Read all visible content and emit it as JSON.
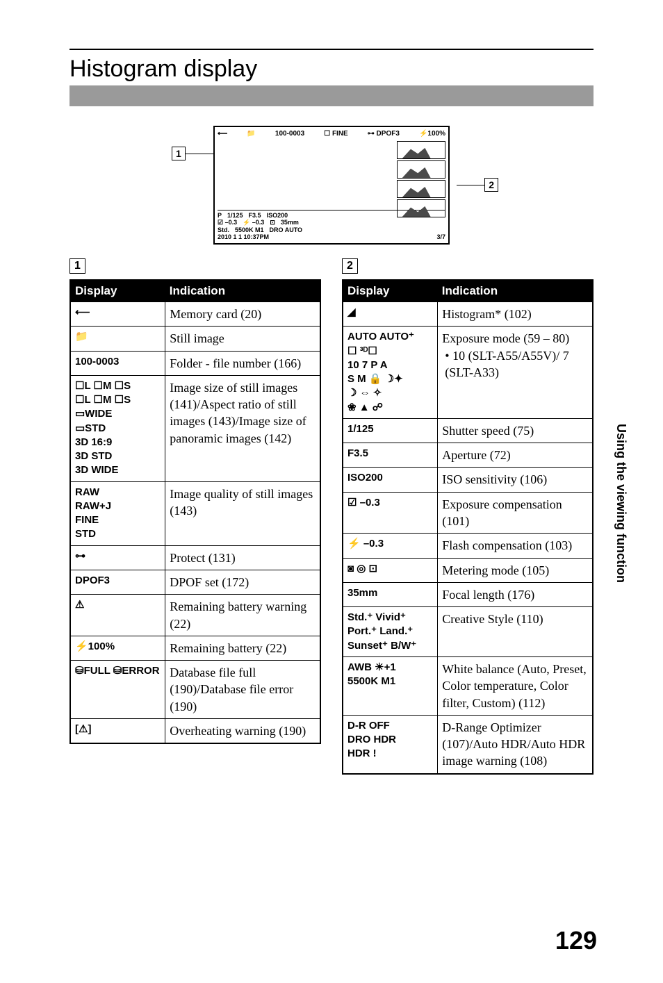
{
  "title": "Histogram display",
  "side_text": "Using the viewing function",
  "page_number": "129",
  "callouts": {
    "one": "1",
    "two": "2"
  },
  "lcd": {
    "top": [
      "⟵",
      "📁",
      "100-0003",
      "☐ FINE",
      "⊶ DPOF3",
      "⚡100%"
    ],
    "bottom": [
      [
        "P",
        "1/125",
        "F3.5",
        "ISO200"
      ],
      [
        "☑ –0.3",
        "⚡ –0.3",
        "⊡",
        "35mm"
      ],
      [
        "Std.",
        "5500K M1",
        "DRO AUTO"
      ],
      [
        "2010 1 1  10:37PM",
        "",
        "",
        "3/7"
      ]
    ]
  },
  "table1": {
    "head_display": "Display",
    "head_indication": "Indication",
    "rows": [
      {
        "disp": "⟵",
        "ind": "Memory card (20)"
      },
      {
        "disp": "📁",
        "ind": "Still image"
      },
      {
        "disp": "100-0003",
        "ind": "Folder - file number (166)"
      },
      {
        "disp": "☐L ☐M ☐S\n☐L ☐M ☐S\n▭WIDE\n▭STD\n3D 16:9\n3D STD\n3D WIDE",
        "ind": "Image size of still images (141)/Aspect ratio of still images (143)/Image size of panoramic images (142)"
      },
      {
        "disp": "RAW\nRAW+J\nFINE\nSTD",
        "ind": "Image quality of still images (143)"
      },
      {
        "disp": "⊶",
        "ind": "Protect (131)"
      },
      {
        "disp": "DPOF3",
        "ind": "DPOF set (172)"
      },
      {
        "disp": "⚠",
        "ind": "Remaining battery warning (22)"
      },
      {
        "disp": "⚡100%",
        "ind": "Remaining battery (22)"
      },
      {
        "disp": "⛁FULL ⛁ERROR",
        "ind": "Database file full (190)/Database file error (190)"
      },
      {
        "disp": "[⚠]",
        "ind": "Overheating warning (190)"
      }
    ]
  },
  "table2": {
    "head_display": "Display",
    "head_indication": "Indication",
    "rows": [
      {
        "disp": "◢",
        "ind": "Histogram* (102)"
      },
      {
        "disp": "AUTO AUTO⁺\n☐ ³ᴰ☐\n10 7 P A\nS M 🔒 ☽✦\n☽ ⇔ ✧\n❀ ▲ ☍",
        "ind": "Exposure mode (59 – 80)",
        "sub": "10 (SLT-A55/A55V)/ 7 (SLT-A33)"
      },
      {
        "disp": "1/125",
        "ind": "Shutter speed (75)"
      },
      {
        "disp": "F3.5",
        "ind": "Aperture (72)"
      },
      {
        "disp": "ISO200",
        "ind": "ISO sensitivity (106)"
      },
      {
        "disp": "☑ –0.3",
        "ind": "Exposure compensation (101)"
      },
      {
        "disp": "⚡ –0.3",
        "ind": "Flash compensation (103)"
      },
      {
        "disp": "◙ ◎ ⊡",
        "ind": "Metering mode (105)"
      },
      {
        "disp": "35mm",
        "ind": "Focal length (176)"
      },
      {
        "disp": "Std.⁺ Vivid⁺\nPort.⁺ Land.⁺\nSunset⁺ B/W⁺",
        "ind": "Creative Style (110)"
      },
      {
        "disp": "AWB ☀+1\n5500K M1",
        "ind": "White balance (Auto, Preset, Color temperature, Color filter, Custom) (112)"
      },
      {
        "disp": "D-R OFF\nDRO HDR\nHDR !",
        "ind": "D-Range Optimizer (107)/Auto HDR/Auto HDR image warning (108)"
      }
    ]
  }
}
